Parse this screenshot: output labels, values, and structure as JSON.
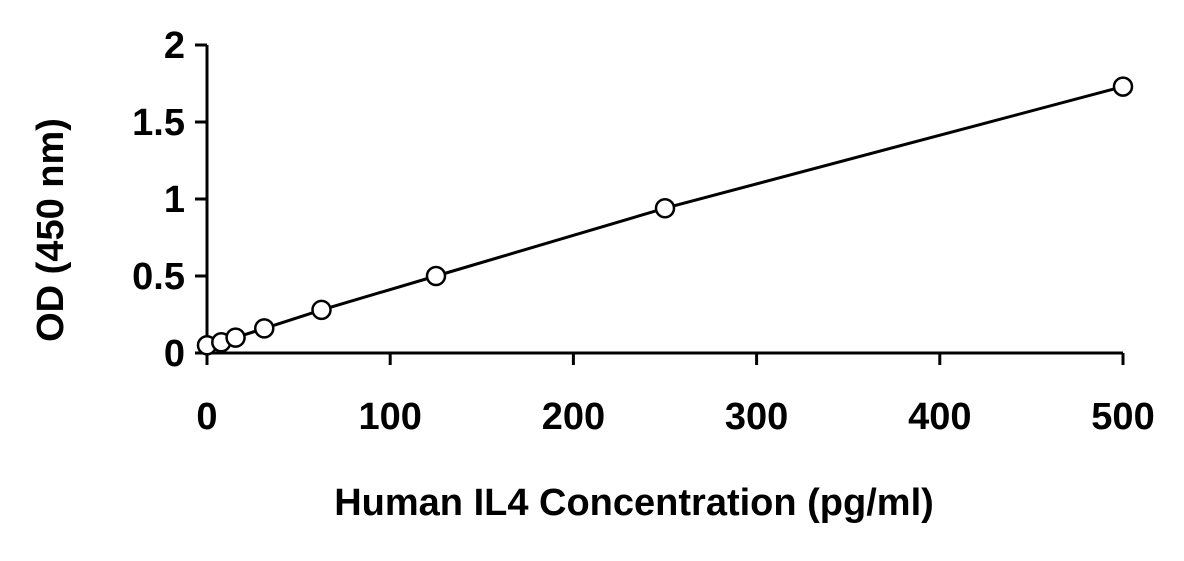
{
  "chart_data": {
    "type": "scatter",
    "title": "",
    "xlabel": "Human IL4 Concentration (pg/ml)",
    "ylabel": "OD (450 nm)",
    "xlim": [
      0,
      500
    ],
    "ylim": [
      0,
      2
    ],
    "x_ticks": [
      "0",
      "100",
      "200",
      "300",
      "400",
      "500"
    ],
    "y_ticks": [
      "0",
      "0.5",
      "1",
      "1.5",
      "2"
    ],
    "grid": false,
    "legend": "none",
    "series": [
      {
        "marker": "open-circle",
        "fit_line": true,
        "x": [
          0,
          7.8,
          15.6,
          31.25,
          62.5,
          125,
          250,
          500
        ],
        "y": [
          0.05,
          0.07,
          0.1,
          0.16,
          0.28,
          0.5,
          0.94,
          1.73
        ]
      }
    ],
    "colors": {
      "axis": "#000000",
      "line": "#000000",
      "marker_fill": "#ffffff"
    }
  }
}
